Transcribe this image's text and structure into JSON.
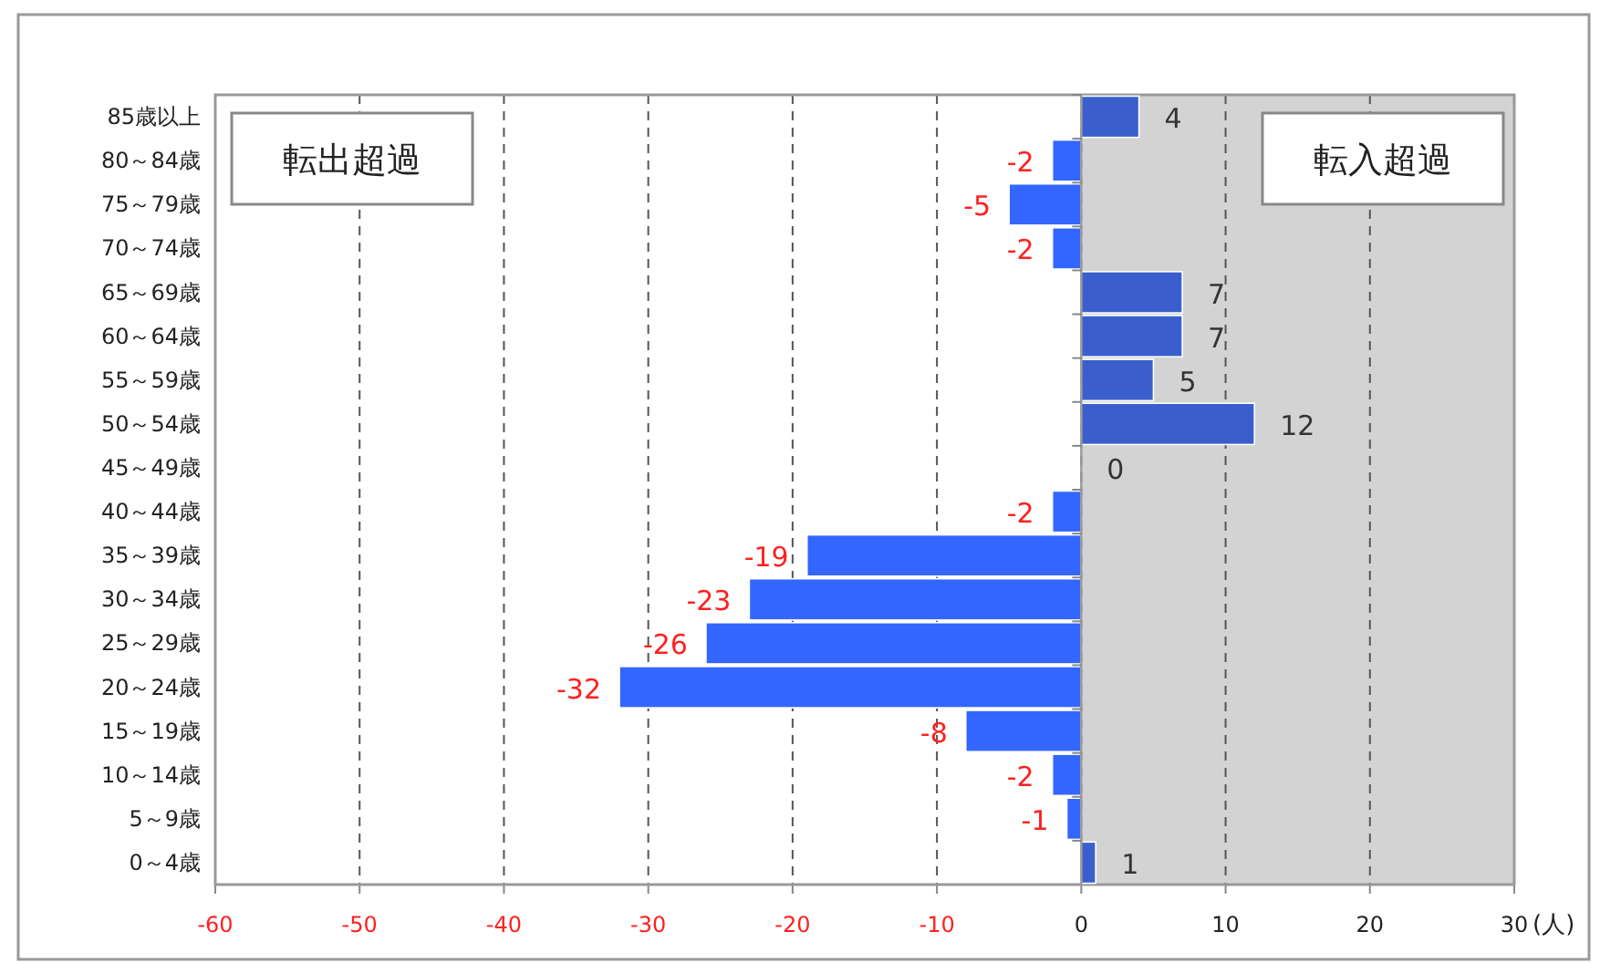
{
  "chart_data": {
    "type": "bar",
    "orientation": "horizontal",
    "xlabel": "(人)",
    "categories": [
      "85歳以上",
      "80～84歳",
      "75～79歳",
      "70～74歳",
      "65～69歳",
      "60～64歳",
      "55～59歳",
      "50～54歳",
      "45～49歳",
      "40～44歳",
      "35～39歳",
      "30～34歳",
      "25～29歳",
      "20～24歳",
      "15～19歳",
      "10～14歳",
      "5～9歳",
      "0～4歳"
    ],
    "values": [
      4,
      -2,
      -5,
      -2,
      7,
      7,
      5,
      12,
      0,
      -2,
      -19,
      -23,
      -26,
      -32,
      -8,
      -2,
      -1,
      1
    ],
    "colors": [
      "#3a5fcd",
      "#3366ff",
      "#3366ff",
      "#3366ff",
      "#3a5fcd",
      "#3a5fcd",
      "#3a5fcd",
      "#3a5fcd",
      "#3a5fcd",
      "#3366ff",
      "#3366ff",
      "#3366ff",
      "#3366ff",
      "#3366ff",
      "#3366ff",
      "#3366ff",
      "#3366ff",
      "#3a5fcd"
    ],
    "xlim": [
      -60,
      30
    ],
    "xticks": [
      -60,
      -50,
      -40,
      -30,
      -20,
      -10,
      0,
      10,
      20,
      30
    ],
    "bands": [
      {
        "axis": "x",
        "from": 0,
        "to": 30,
        "color": "#d3d3d3"
      }
    ],
    "grid": "x",
    "data_labels": true,
    "annotations": [
      "転出超過",
      "転入超過"
    ]
  }
}
